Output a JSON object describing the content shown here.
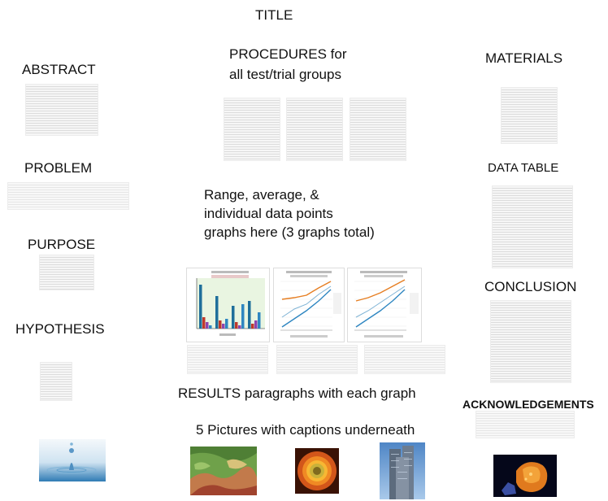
{
  "labels": {
    "title": "TITLE",
    "abstract": "ABSTRACT",
    "problem": "PROBLEM",
    "purpose": "PURPOSE",
    "hypothesis": "HYPOTHESIS",
    "procedures_line1": "PROCEDURES for",
    "procedures_line2": "all test/trial groups",
    "graphs_line1": "Range, average, &",
    "graphs_line2": "individual data points",
    "graphs_line3": "graphs here (3 graphs total)",
    "results": "RESULTS paragraphs with each graph",
    "pictures": "5 Pictures with captions underneath",
    "materials": "MATERIALS",
    "data_table": "DATA TABLE",
    "conclusion": "CONCLUSION",
    "acknowledgements": "ACKNOWLEDGEMENTS"
  },
  "icons": {
    "water_drop": "water-drop-photo",
    "terrain": "terrain-map-photo",
    "sunflower": "sunflower-photo",
    "skyscraper": "skyscraper-photo",
    "mineral": "mineral-specimen-photo"
  },
  "colors": {
    "bar_series": [
      "#1f6f9b",
      "#c0392b",
      "#8e44ad",
      "#2e86c1"
    ],
    "line_series": [
      "#2e86c1",
      "#e67e22",
      "#7fb3d5"
    ]
  }
}
